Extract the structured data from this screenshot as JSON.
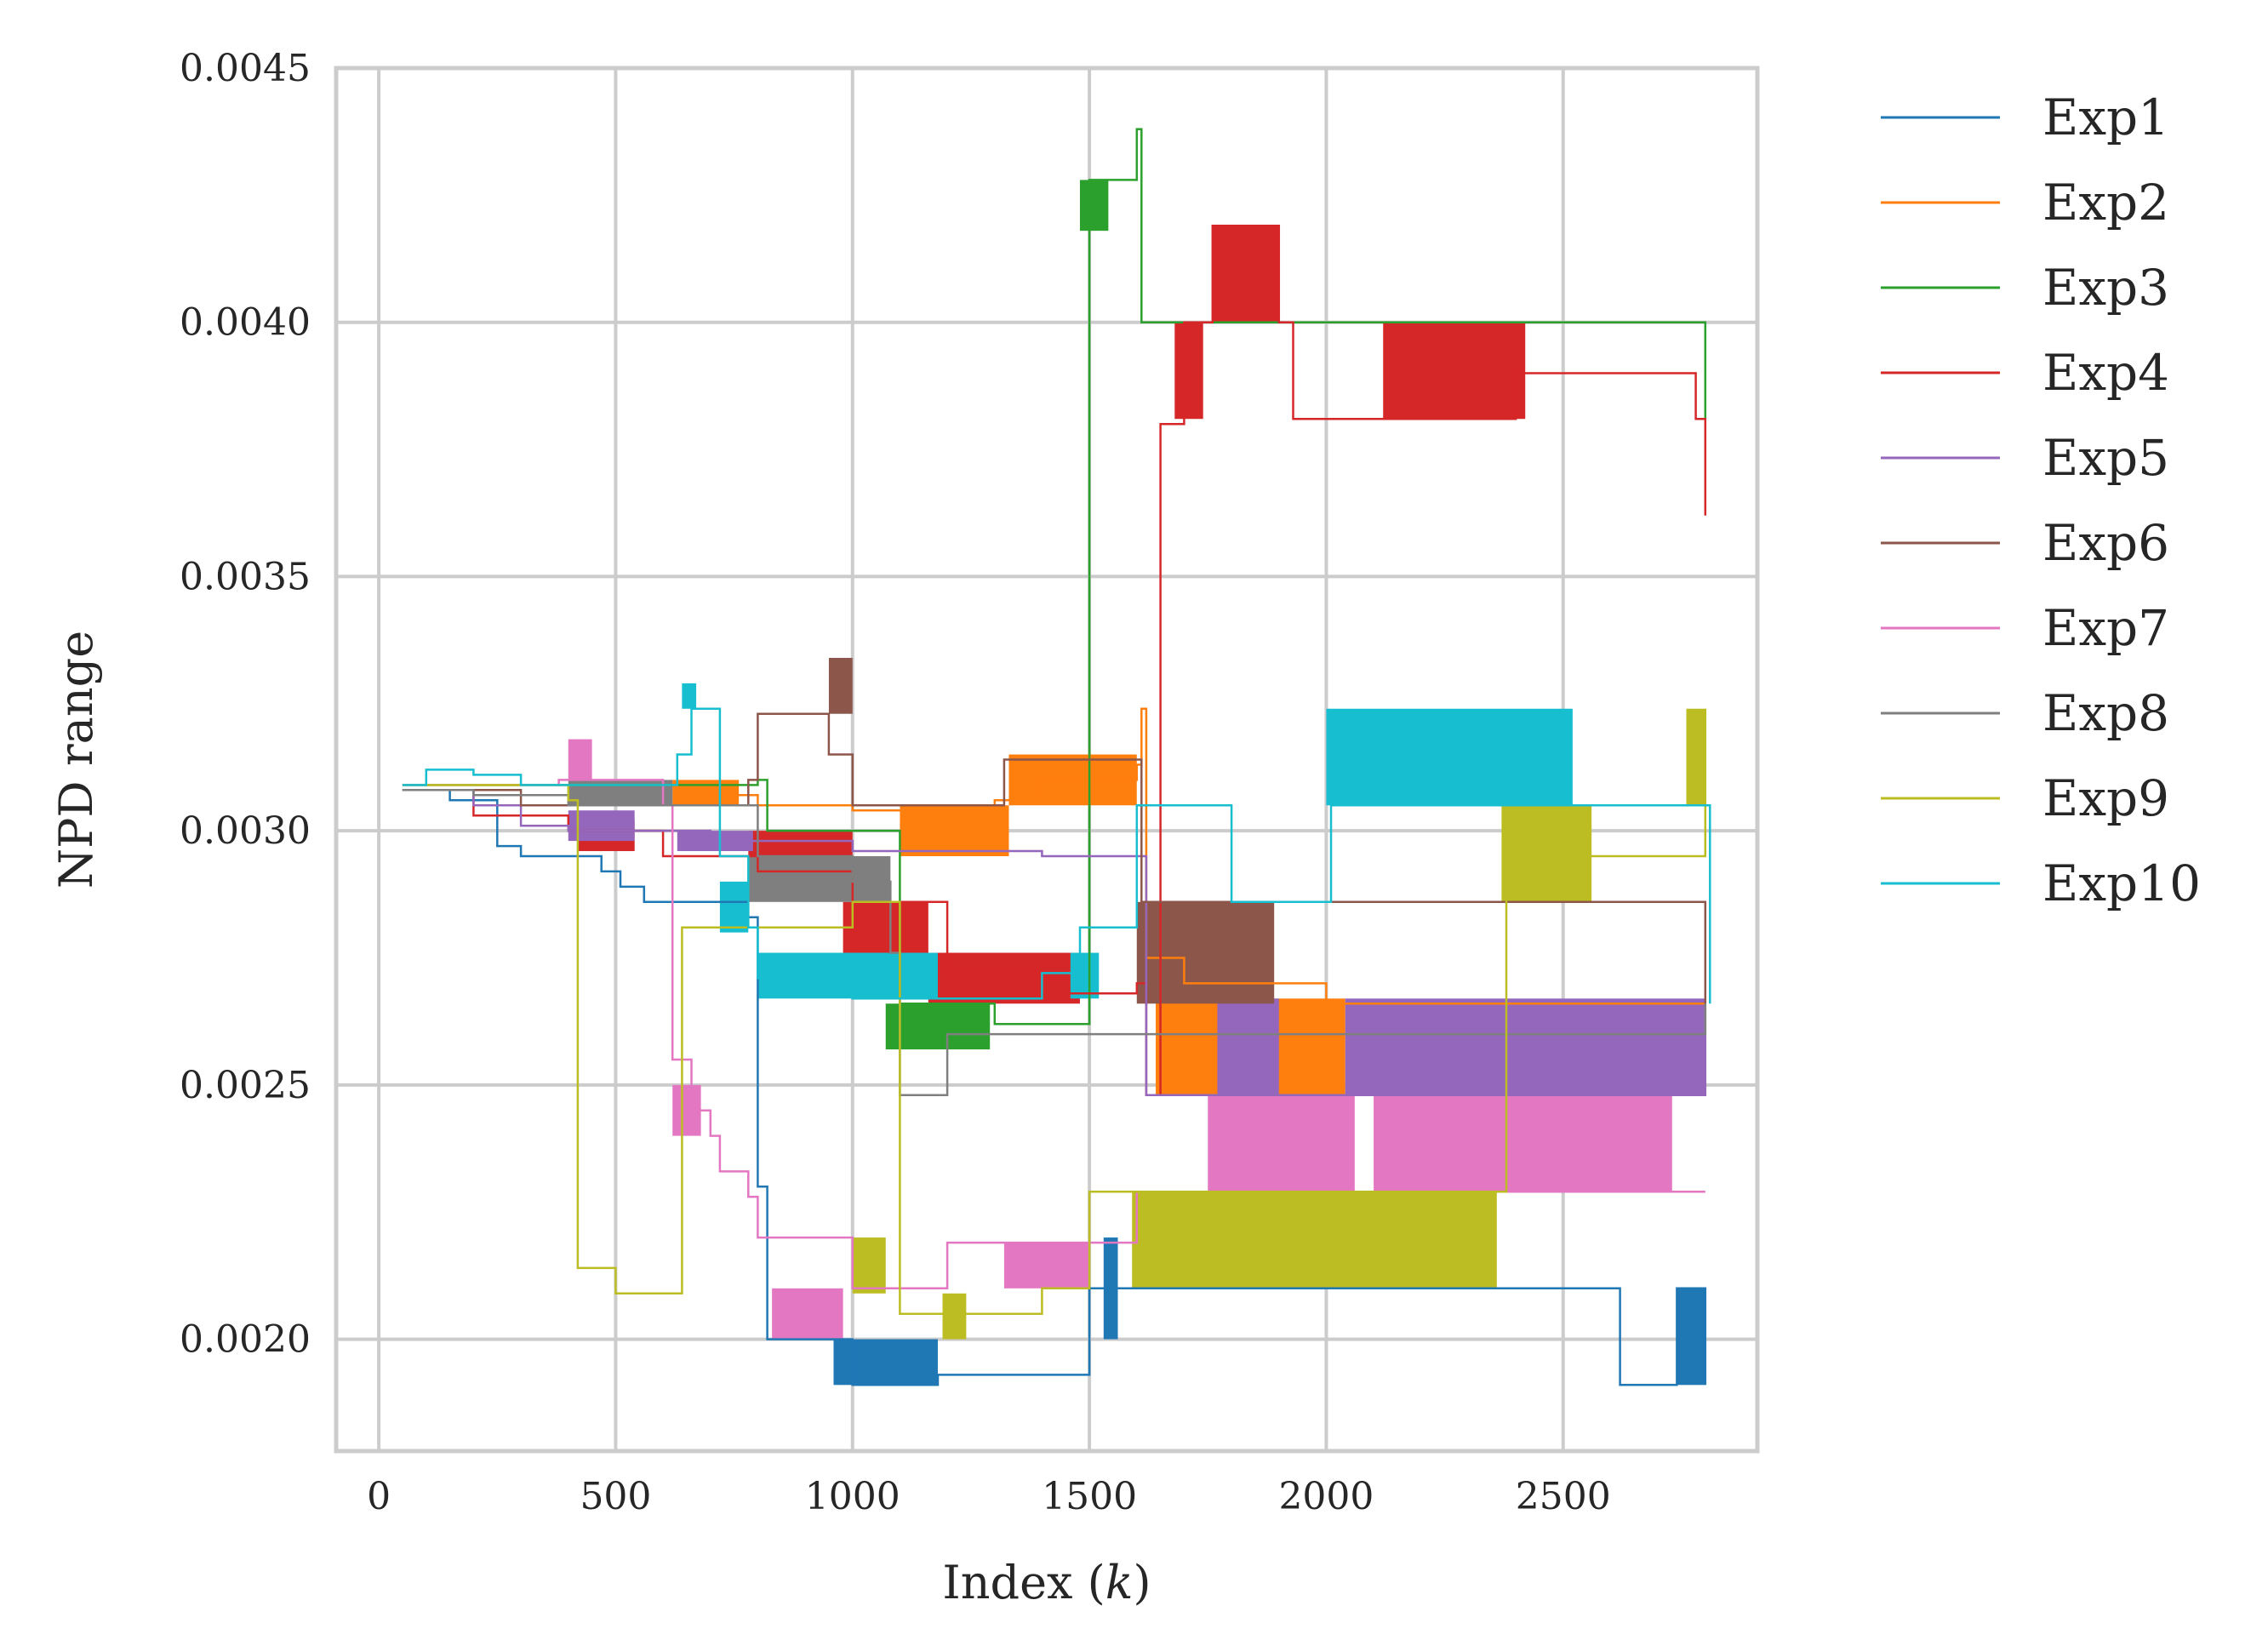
{
  "chart_data": {
    "type": "line",
    "title": "",
    "xlabel": "Index (k)",
    "xlabel_parts": {
      "prefix": "Index (",
      "var": "k",
      "suffix": ")"
    },
    "ylabel": "NPD range",
    "xlim": [
      -90,
      2910
    ],
    "ylim": [
      0.00178,
      0.0045
    ],
    "xticks": [
      0,
      500,
      1000,
      1500,
      2000,
      2500
    ],
    "xtick_labels": [
      "0",
      "500",
      "1000",
      "1500",
      "2000",
      "2500"
    ],
    "yticks": [
      0.002,
      0.0025,
      0.003,
      0.0035,
      0.004,
      0.0045
    ],
    "ytick_labels": [
      "0.0020",
      "0.0025",
      "0.0030",
      "0.0035",
      "0.0040",
      "0.0045"
    ],
    "grid": true,
    "legend_position": "outside-right",
    "series": [
      {
        "name": "Exp1",
        "color": "#1f77b4",
        "steps": [
          [
            50,
            0.00308
          ],
          [
            150,
            0.00306
          ],
          [
            250,
            0.00297
          ],
          [
            300,
            0.00295
          ],
          [
            470,
            0.00292
          ],
          [
            510,
            0.00289
          ],
          [
            560,
            0.00286
          ],
          [
            700,
            0.00286
          ],
          [
            780,
            0.00283
          ],
          [
            800,
            0.0023
          ],
          [
            820,
            0.002
          ],
          [
            960,
            0.002
          ],
          [
            1000,
            0.00191
          ],
          [
            1180,
            0.00193
          ],
          [
            1500,
            0.0021
          ],
          [
            1560,
            0.0021
          ],
          [
            1600,
            0.0021
          ],
          [
            2600,
            0.0021
          ],
          [
            2620,
            0.00191
          ],
          [
            2720,
            0.00191
          ],
          [
            2740,
            0.0021
          ],
          [
            2800,
            0.00191
          ]
        ],
        "bands": [
          [
            960,
            1180,
            0.00191,
            0.002
          ],
          [
            1530,
            1560,
            0.002,
            0.0022
          ],
          [
            2740,
            2800,
            0.00191,
            0.0021
          ]
        ]
      },
      {
        "name": "Exp2",
        "color": "#ff7f0e",
        "steps": [
          [
            50,
            0.00309
          ],
          [
            200,
            0.00309
          ],
          [
            600,
            0.00309
          ],
          [
            700,
            0.00307
          ],
          [
            800,
            0.00305
          ],
          [
            1000,
            0.00304
          ],
          [
            1300,
            0.00306
          ],
          [
            1400,
            0.0031
          ],
          [
            1600,
            0.00313
          ],
          [
            1610,
            0.00324
          ],
          [
            1620,
            0.00275
          ],
          [
            1700,
            0.0027
          ],
          [
            2000,
            0.00266
          ],
          [
            2800,
            0.00266
          ]
        ],
        "bands": [
          [
            620,
            760,
            0.00305,
            0.0031
          ],
          [
            1100,
            1330,
            0.00295,
            0.00305
          ],
          [
            1330,
            1600,
            0.00305,
            0.00315
          ],
          [
            1640,
            1780,
            0.00248,
            0.00267
          ],
          [
            1880,
            2040,
            0.00248,
            0.00267
          ]
        ]
      },
      {
        "name": "Exp3",
        "color": "#2ca02c",
        "steps": [
          [
            50,
            0.00309
          ],
          [
            400,
            0.00309
          ],
          [
            800,
            0.0031
          ],
          [
            820,
            0.003
          ],
          [
            1000,
            0.003
          ],
          [
            1100,
            0.00266
          ],
          [
            1300,
            0.00262
          ],
          [
            1480,
            0.00262
          ],
          [
            1500,
            0.00428
          ],
          [
            1560,
            0.00428
          ],
          [
            1600,
            0.00438
          ],
          [
            1610,
            0.004
          ],
          [
            2000,
            0.004
          ],
          [
            2800,
            0.00381
          ]
        ],
        "bands": [
          [
            1070,
            1290,
            0.00257,
            0.00266
          ],
          [
            1480,
            1540,
            0.00418,
            0.00428
          ]
        ]
      },
      {
        "name": "Exp4",
        "color": "#d62728",
        "steps": [
          [
            50,
            0.00308
          ],
          [
            200,
            0.00303
          ],
          [
            400,
            0.003
          ],
          [
            600,
            0.00295
          ],
          [
            800,
            0.00292
          ],
          [
            1000,
            0.00286
          ],
          [
            1200,
            0.00272
          ],
          [
            1400,
            0.00268
          ],
          [
            1600,
            0.0027
          ],
          [
            1620,
            0.00248
          ],
          [
            1650,
            0.0038
          ],
          [
            1700,
            0.004
          ],
          [
            1760,
            0.00419
          ],
          [
            1900,
            0.004
          ],
          [
            1930,
            0.00381
          ],
          [
            2100,
            0.00381
          ],
          [
            2400,
            0.0039
          ],
          [
            2780,
            0.00381
          ],
          [
            2800,
            0.00362
          ]
        ],
        "bands": [
          [
            420,
            540,
            0.00296,
            0.00302
          ],
          [
            780,
            1000,
            0.0029,
            0.003
          ],
          [
            980,
            1160,
            0.00276,
            0.00286
          ],
          [
            1160,
            1480,
            0.00266,
            0.00276
          ],
          [
            1680,
            1740,
            0.00381,
            0.004
          ],
          [
            1760,
            1900,
            0.004,
            0.00419
          ],
          [
            2120,
            2420,
            0.00381,
            0.004
          ]
        ]
      },
      {
        "name": "Exp5",
        "color": "#9467bd",
        "steps": [
          [
            50,
            0.00308
          ],
          [
            200,
            0.00305
          ],
          [
            300,
            0.00301
          ],
          [
            400,
            0.003
          ],
          [
            600,
            0.003
          ],
          [
            700,
            0.00298
          ],
          [
            1000,
            0.00296
          ],
          [
            1400,
            0.00295
          ],
          [
            1600,
            0.00295
          ],
          [
            1620,
            0.00248
          ],
          [
            2800,
            0.00266
          ]
        ],
        "bands": [
          [
            400,
            540,
            0.00298,
            0.00304
          ],
          [
            630,
            790,
            0.00296,
            0.003
          ],
          [
            1770,
            1900,
            0.00248,
            0.00267
          ],
          [
            2040,
            2800,
            0.00248,
            0.00267
          ]
        ]
      },
      {
        "name": "Exp6",
        "color": "#8c564b",
        "steps": [
          [
            50,
            0.00308
          ],
          [
            300,
            0.00305
          ],
          [
            500,
            0.00305
          ],
          [
            780,
            0.0031
          ],
          [
            800,
            0.00323
          ],
          [
            900,
            0.00323
          ],
          [
            950,
            0.00315
          ],
          [
            1000,
            0.00305
          ],
          [
            1300,
            0.00305
          ],
          [
            1320,
            0.00314
          ],
          [
            1600,
            0.00314
          ],
          [
            1610,
            0.00286
          ],
          [
            2800,
            0.00266
          ]
        ],
        "bands": [
          [
            950,
            1000,
            0.00323,
            0.00334
          ],
          [
            1600,
            1890,
            0.00266,
            0.00286
          ]
        ]
      },
      {
        "name": "Exp7",
        "color": "#e377c2",
        "steps": [
          [
            50,
            0.00309
          ],
          [
            380,
            0.0031
          ],
          [
            600,
            0.00305
          ],
          [
            620,
            0.00255
          ],
          [
            660,
            0.00245
          ],
          [
            700,
            0.0024
          ],
          [
            720,
            0.00233
          ],
          [
            780,
            0.00228
          ],
          [
            800,
            0.0022
          ],
          [
            1000,
            0.0021
          ],
          [
            1200,
            0.00219
          ],
          [
            1500,
            0.00219
          ],
          [
            1600,
            0.00229
          ],
          [
            1760,
            0.00229
          ],
          [
            2800,
            0.00229
          ]
        ],
        "bands": [
          [
            400,
            450,
            0.0031,
            0.00318
          ],
          [
            620,
            680,
            0.0024,
            0.0025
          ],
          [
            830,
            980,
            0.002,
            0.0021
          ],
          [
            1320,
            1500,
            0.0021,
            0.00219
          ],
          [
            1750,
            2060,
            0.00229,
            0.00248
          ],
          [
            2100,
            2730,
            0.00229,
            0.00248
          ]
        ]
      },
      {
        "name": "Exp8",
        "color": "#7f7f7f",
        "steps": [
          [
            50,
            0.00308
          ],
          [
            200,
            0.00307
          ],
          [
            400,
            0.00305
          ],
          [
            600,
            0.00305
          ],
          [
            800,
            0.00295
          ],
          [
            900,
            0.00295
          ],
          [
            1000,
            0.0029
          ],
          [
            1080,
            0.00276
          ],
          [
            1100,
            0.00248
          ],
          [
            1200,
            0.0026
          ],
          [
            2800,
            0.00266
          ]
        ],
        "bands": [
          [
            400,
            620,
            0.00305,
            0.0031
          ],
          [
            780,
            1080,
            0.00286,
            0.00295
          ]
        ]
      },
      {
        "name": "Exp9",
        "color": "#bcbd22",
        "steps": [
          [
            50,
            0.00309
          ],
          [
            300,
            0.00309
          ],
          [
            400,
            0.00306
          ],
          [
            420,
            0.00214
          ],
          [
            500,
            0.00209
          ],
          [
            630,
            0.00209
          ],
          [
            640,
            0.00281
          ],
          [
            700,
            0.00281
          ],
          [
            1000,
            0.00286
          ],
          [
            1100,
            0.00205
          ],
          [
            1300,
            0.00205
          ],
          [
            1400,
            0.0021
          ],
          [
            1500,
            0.00229
          ],
          [
            1600,
            0.00229
          ],
          [
            2360,
            0.00229
          ],
          [
            2380,
            0.00295
          ],
          [
            2800,
            0.00324
          ]
        ],
        "bands": [
          [
            1000,
            1070,
            0.00209,
            0.0022
          ],
          [
            1190,
            1240,
            0.002,
            0.00209
          ],
          [
            1590,
            2360,
            0.0021,
            0.00229
          ],
          [
            2370,
            2560,
            0.00286,
            0.00305
          ],
          [
            2760,
            2800,
            0.00305,
            0.00324
          ]
        ]
      },
      {
        "name": "Exp10",
        "color": "#17becf",
        "steps": [
          [
            50,
            0.00309
          ],
          [
            100,
            0.00312
          ],
          [
            200,
            0.00311
          ],
          [
            300,
            0.00309
          ],
          [
            500,
            0.00309
          ],
          [
            630,
            0.00315
          ],
          [
            660,
            0.00324
          ],
          [
            700,
            0.00324
          ],
          [
            720,
            0.00295
          ],
          [
            780,
            0.00281
          ],
          [
            800,
            0.00271
          ],
          [
            1000,
            0.00267
          ],
          [
            1400,
            0.00272
          ],
          [
            1480,
            0.00281
          ],
          [
            1600,
            0.00305
          ],
          [
            1800,
            0.00286
          ],
          [
            2000,
            0.00286
          ],
          [
            2010,
            0.00305
          ],
          [
            2400,
            0.00305
          ],
          [
            2800,
            0.00305
          ],
          [
            2810,
            0.00266
          ]
        ],
        "bands": [
          [
            640,
            670,
            0.00324,
            0.00329
          ],
          [
            720,
            780,
            0.0028,
            0.0029
          ],
          [
            800,
            1180,
            0.00267,
            0.00276
          ],
          [
            1460,
            1520,
            0.00267,
            0.00276
          ],
          [
            2000,
            2520,
            0.00305,
            0.00324
          ]
        ]
      }
    ]
  }
}
